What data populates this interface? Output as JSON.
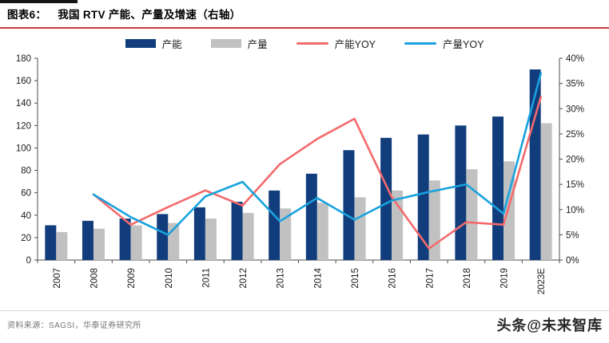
{
  "header": {
    "label": "图表6：",
    "title": "我国 RTV 产能、产量及增速（右轴）"
  },
  "footer": {
    "source": "资料来源：SAGSI，华泰证券研究所",
    "watermark": "头条@未来智库"
  },
  "colors": {
    "top_bar": "#141414",
    "underline": "#c63c3c",
    "divider": "#d9d9d9",
    "source_text": "#757575",
    "watermark": "#262626",
    "axis_line": "#4d4d4d",
    "tick_text": "#1a1a1a"
  },
  "chart_data": {
    "type": "bar",
    "subtype": "bar+line combo, lines on right axis",
    "title": "我国 RTV 产能、产量及增速（右轴）",
    "grid": false,
    "legend_position": "top",
    "categories": [
      "2007",
      "2008",
      "2009",
      "2010",
      "2011",
      "2012",
      "2013",
      "2014",
      "2015",
      "2016",
      "2017",
      "2018",
      "2019",
      "2023E"
    ],
    "series": [
      {
        "name": "产能",
        "type": "bar",
        "axis": "left",
        "color": "#123d7c",
        "values": [
          31,
          35,
          37,
          41,
          47,
          52,
          62,
          77,
          98,
          109,
          112,
          120,
          128,
          170
        ]
      },
      {
        "name": "产量",
        "type": "bar",
        "axis": "left",
        "color": "#c1c1c1",
        "values": [
          25,
          28,
          31,
          33,
          37,
          42,
          46,
          51,
          56,
          62,
          71,
          81,
          88,
          122
        ]
      },
      {
        "name": "产能YOY",
        "type": "line",
        "axis": "right",
        "color": "#f46a6c",
        "values": [
          null,
          13,
          7,
          10.5,
          13.8,
          10.8,
          19,
          24,
          28,
          12.5,
          2.3,
          7.5,
          7,
          32.3
        ]
      },
      {
        "name": "产量YOY",
        "type": "line",
        "axis": "right",
        "color": "#18a2de",
        "values": [
          null,
          13,
          8.5,
          5,
          12.6,
          15.5,
          7.7,
          12.3,
          8,
          11.8,
          13.5,
          15,
          9.2,
          37
        ]
      }
    ],
    "axis_left": {
      "min": 0,
      "max": 180,
      "step": 20,
      "tick_labels": [
        "0",
        "20",
        "40",
        "60",
        "80",
        "100",
        "120",
        "140",
        "160",
        "180"
      ]
    },
    "axis_right": {
      "min": 0,
      "max": 40,
      "step": 5,
      "unit": "%",
      "tick_labels": [
        "0%",
        "5%",
        "10%",
        "15%",
        "20%",
        "25%",
        "30%",
        "35%",
        "40%"
      ]
    }
  }
}
